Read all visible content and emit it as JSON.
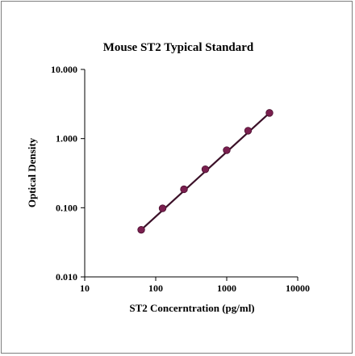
{
  "chart_data": {
    "type": "scatter",
    "title": "Mouse ST2 Typical Standard",
    "xlabel": "ST2 Concerntration (pg/ml)",
    "ylabel": "Optical Density",
    "x_scale": "log",
    "y_scale": "log",
    "xlim": [
      10,
      10000
    ],
    "ylim": [
      0.01,
      10
    ],
    "x_ticks": [
      {
        "value": 10,
        "label": "10"
      },
      {
        "value": 100,
        "label": "100"
      },
      {
        "value": 1000,
        "label": "1000"
      },
      {
        "value": 10000,
        "label": "10000"
      }
    ],
    "y_ticks": [
      {
        "value": 0.01,
        "label": "0.010"
      },
      {
        "value": 0.1,
        "label": "0.100"
      },
      {
        "value": 1,
        "label": "1.000"
      },
      {
        "value": 10,
        "label": "10.000"
      }
    ],
    "grid": false,
    "legend": "none",
    "colors": {
      "point": "#7a1f4f",
      "point_stroke": "#4a0f2e",
      "line": "#3b1028",
      "axis": "#000000"
    },
    "points": {
      "x": [
        62.5,
        125,
        250,
        500,
        1000,
        2000,
        4000
      ],
      "y": [
        0.048,
        0.098,
        0.185,
        0.36,
        0.68,
        1.3,
        2.35
      ]
    },
    "trendline": {
      "x": [
        62.5,
        4000
      ],
      "y": [
        0.048,
        2.35
      ]
    }
  }
}
